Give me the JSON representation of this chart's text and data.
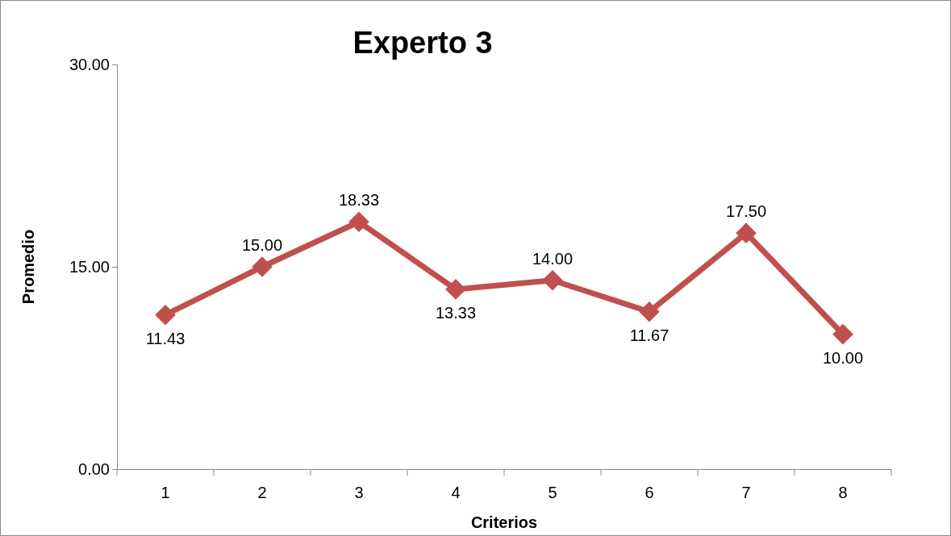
{
  "chart_data": {
    "type": "line",
    "title": "Experto 3",
    "xlabel": "Criterios",
    "ylabel": "Promedio",
    "categories": [
      "1",
      "2",
      "3",
      "4",
      "5",
      "6",
      "7",
      "8"
    ],
    "series": [
      {
        "color": "#c0504d",
        "values": [
          11.43,
          15.0,
          18.33,
          13.33,
          14.0,
          11.67,
          17.5,
          10.0
        ],
        "value_labels": [
          "11.43",
          "15.00",
          "18.33",
          "13.33",
          "14.00",
          "11.67",
          "17.50",
          "10.00"
        ]
      }
    ],
    "ylim": [
      0,
      30
    ],
    "yticks": [
      {
        "value": 0,
        "label": "0.00"
      },
      {
        "value": 15,
        "label": "15.00"
      },
      {
        "value": 30,
        "label": "30.00"
      }
    ],
    "grid": false,
    "marker": "diamond",
    "line_style": "solid"
  }
}
